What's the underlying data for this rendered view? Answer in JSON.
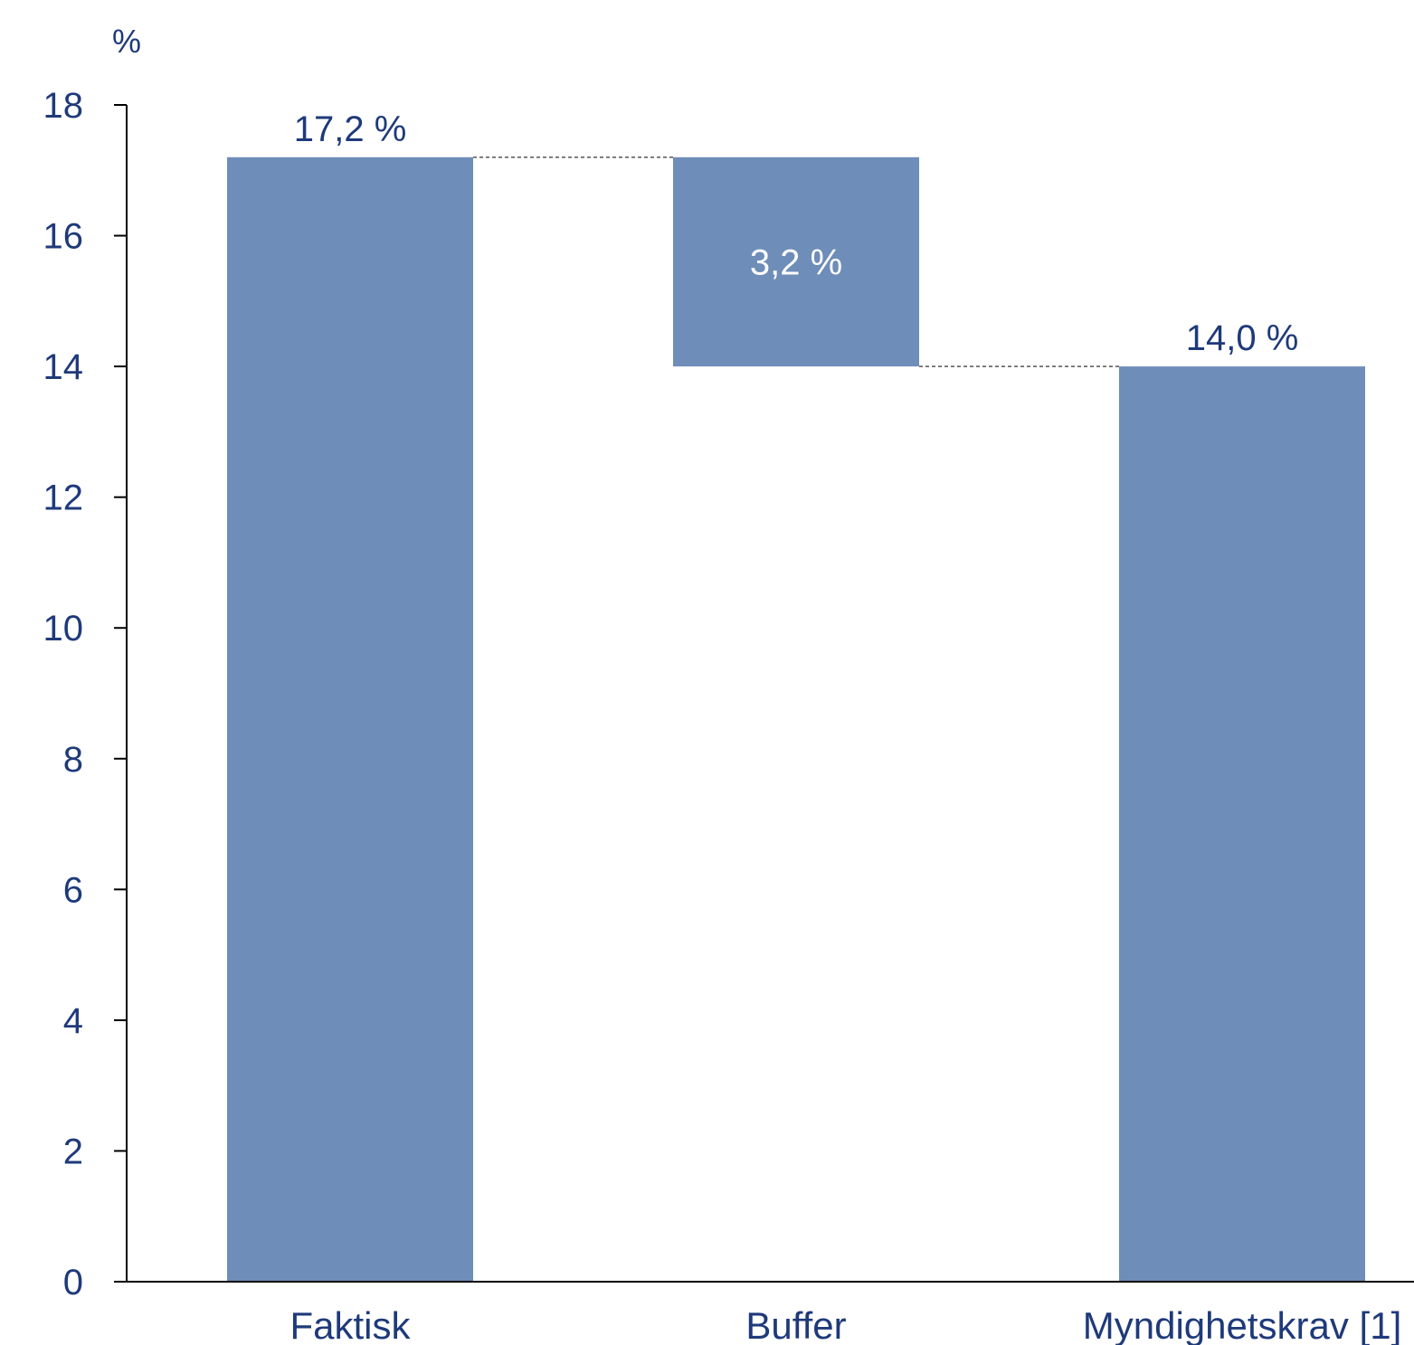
{
  "chart_data": {
    "type": "bar",
    "subtype": "waterfall",
    "unit_label": "%",
    "categories": [
      "Faktisk",
      "Buffer",
      "Myndighetskrav [1]"
    ],
    "bars": [
      {
        "category": "Faktisk",
        "base": 0,
        "top": 17.2,
        "label": "17,2 %",
        "label_position": "above"
      },
      {
        "category": "Buffer",
        "base": 14.0,
        "top": 17.2,
        "label": "3,2 %",
        "label_position": "inside"
      },
      {
        "category": "Myndighetskrav [1]",
        "base": 0,
        "top": 14.0,
        "label": "14,0 %",
        "label_position": "above"
      }
    ],
    "connectors": [
      {
        "from": "Faktisk",
        "to": "Buffer",
        "value": 17.2
      },
      {
        "from": "Buffer",
        "to": "Myndighetskrav [1]",
        "value": 14.0
      }
    ],
    "yticks": [
      "0",
      "2",
      "4",
      "6",
      "8",
      "10",
      "12",
      "14",
      "16",
      "18"
    ],
    "ylim": [
      0,
      18
    ],
    "grid": false,
    "legend": "none",
    "colors": {
      "bar": "#6e8db8",
      "text": "#1f3a7a",
      "inside_label": "#ffffff",
      "axis": "#000000",
      "connector": "#555555"
    }
  }
}
